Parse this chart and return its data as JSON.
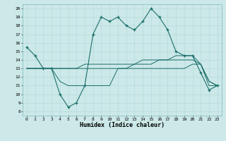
{
  "title": "",
  "xlabel": "Humidex (Indice chaleur)",
  "bg_color": "#cce8e8",
  "line_color": "#1a6e6a",
  "x_values": [
    0,
    1,
    2,
    3,
    4,
    5,
    6,
    7,
    8,
    9,
    10,
    11,
    12,
    13,
    14,
    15,
    16,
    17,
    18,
    19,
    20,
    21,
    22,
    23
  ],
  "line1": [
    15.5,
    14.5,
    13.0,
    13.0,
    10.0,
    8.5,
    9.0,
    11.0,
    17.0,
    19.0,
    18.5,
    19.0,
    18.0,
    17.5,
    18.5,
    20.0,
    19.0,
    17.5,
    15.0,
    14.5,
    14.5,
    12.5,
    10.5,
    11.0
  ],
  "line2": [
    13.0,
    13.0,
    13.0,
    13.0,
    11.5,
    11.0,
    11.0,
    11.0,
    11.0,
    11.0,
    11.0,
    13.0,
    13.0,
    13.0,
    13.0,
    13.0,
    13.0,
    13.0,
    13.0,
    13.0,
    13.5,
    13.5,
    11.0,
    11.0
  ],
  "line3": [
    13.0,
    13.0,
    13.0,
    13.0,
    13.0,
    13.0,
    13.0,
    13.5,
    13.5,
    13.5,
    13.5,
    13.5,
    13.5,
    13.5,
    14.0,
    14.0,
    14.0,
    14.0,
    14.5,
    14.5,
    14.5,
    13.5,
    11.5,
    11.0
  ],
  "line4": [
    13.0,
    13.0,
    13.0,
    13.0,
    13.0,
    13.0,
    13.0,
    13.0,
    13.0,
    13.0,
    13.0,
    13.0,
    13.0,
    13.5,
    13.5,
    13.5,
    14.0,
    14.0,
    14.0,
    14.0,
    14.0,
    13.5,
    11.5,
    11.0
  ],
  "ylim": [
    7.5,
    20.5
  ],
  "xlim": [
    -0.5,
    23.5
  ],
  "yticks": [
    8,
    9,
    10,
    11,
    12,
    13,
    14,
    15,
    16,
    17,
    18,
    19,
    20
  ],
  "xticks": [
    0,
    1,
    2,
    3,
    4,
    5,
    6,
    7,
    8,
    9,
    10,
    11,
    12,
    13,
    14,
    15,
    16,
    17,
    18,
    19,
    20,
    21,
    22,
    23
  ]
}
